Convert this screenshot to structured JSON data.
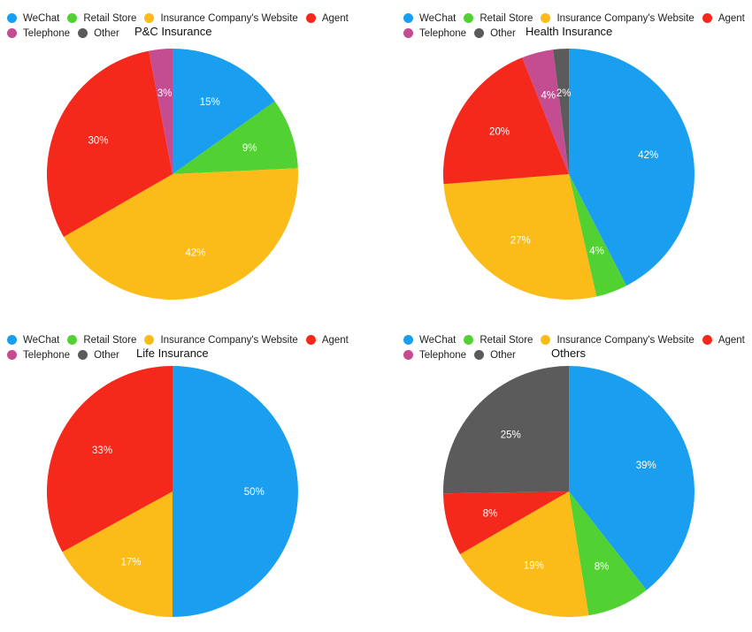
{
  "colors": {
    "WeChat": "#1a9ff0",
    "Retail Store": "#52d133",
    "Insurance Company's Website": "#fbbb18",
    "Agent": "#f5281c",
    "Telephone": "#c44c91",
    "Other": "#5b5b5b"
  },
  "legend": {
    "row1": [
      "WeChat",
      "Retail Store",
      "Insurance Company's Website",
      "Agent"
    ],
    "row2": [
      "Telephone",
      "Other"
    ]
  },
  "chart_data": [
    {
      "type": "pie",
      "title": "P&C Insurance",
      "legend_position": "top",
      "slices": [
        {
          "name": "WeChat",
          "value": 15,
          "label": "15%"
        },
        {
          "name": "Retail Store",
          "value": 9,
          "label": "9%"
        },
        {
          "name": "Insurance Company's Website",
          "value": 42,
          "label": "42%"
        },
        {
          "name": "Agent",
          "value": 30,
          "label": "30%"
        },
        {
          "name": "Telephone",
          "value": 3,
          "label": "3%"
        }
      ]
    },
    {
      "type": "pie",
      "title": "Health Insurance",
      "legend_position": "top",
      "slices": [
        {
          "name": "WeChat",
          "value": 42,
          "label": "42%"
        },
        {
          "name": "Retail Store",
          "value": 4,
          "label": "4%"
        },
        {
          "name": "Insurance Company's Website",
          "value": 27,
          "label": "27%"
        },
        {
          "name": "Agent",
          "value": 20,
          "label": "20%"
        },
        {
          "name": "Telephone",
          "value": 4,
          "label": "4%"
        },
        {
          "name": "Other",
          "value": 2,
          "label": "2%"
        }
      ]
    },
    {
      "type": "pie",
      "title": "Life Insurance",
      "legend_position": "top",
      "slices": [
        {
          "name": "WeChat",
          "value": 50,
          "label": "50%"
        },
        {
          "name": "Insurance Company's Website",
          "value": 17,
          "label": "17%"
        },
        {
          "name": "Agent",
          "value": 33,
          "label": "33%"
        }
      ]
    },
    {
      "type": "pie",
      "title": "Others",
      "legend_position": "top",
      "slices": [
        {
          "name": "WeChat",
          "value": 39,
          "label": "39%"
        },
        {
          "name": "Retail Store",
          "value": 8,
          "label": "8%"
        },
        {
          "name": "Insurance Company's Website",
          "value": 19,
          "label": "19%"
        },
        {
          "name": "Agent",
          "value": 8,
          "label": "8%"
        },
        {
          "name": "Other",
          "value": 25,
          "label": "25%"
        }
      ]
    }
  ]
}
